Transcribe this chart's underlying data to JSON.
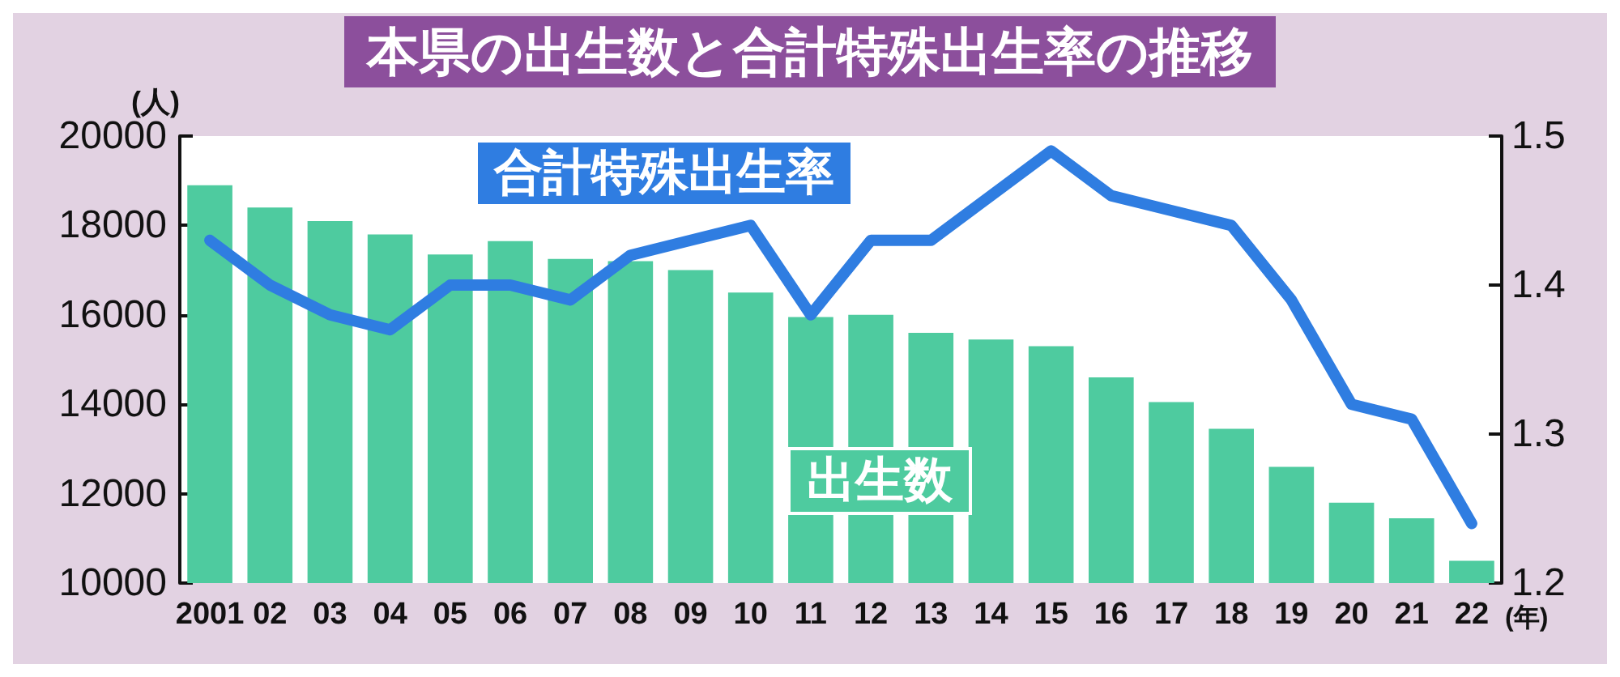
{
  "chart_data": {
    "type": "bar",
    "title": "本県の出生数と合計特殊出生率の推移",
    "ylabel": "(人)",
    "xlabel": "(年)",
    "categories": [
      "2001",
      "02",
      "03",
      "04",
      "05",
      "06",
      "07",
      "08",
      "09",
      "10",
      "11",
      "12",
      "13",
      "14",
      "15",
      "16",
      "17",
      "18",
      "19",
      "20",
      "21",
      "22"
    ],
    "series": [
      {
        "name": "出生数",
        "color": "#4ecb9f",
        "values": [
          18900,
          18400,
          18100,
          17800,
          17350,
          17650,
          17250,
          17200,
          17000,
          16500,
          15950,
          16000,
          15600,
          15450,
          15300,
          14600,
          14050,
          13450,
          12600,
          11800,
          11450,
          10500
        ]
      },
      {
        "name": "合計特殊出生率",
        "type": "line",
        "axis": "y2",
        "color": "#2f7de1",
        "values": [
          1.43,
          1.4,
          1.38,
          1.37,
          1.4,
          1.4,
          1.39,
          1.42,
          1.43,
          1.44,
          1.38,
          1.43,
          1.43,
          1.46,
          1.49,
          1.46,
          1.45,
          1.44,
          1.39,
          1.32,
          1.31,
          1.24
        ]
      }
    ],
    "ylim": [
      10000,
      20000
    ],
    "yticks": [
      10000,
      12000,
      14000,
      16000,
      18000,
      20000
    ],
    "y2lim": [
      1.2,
      1.5
    ],
    "y2ticks": [
      1.2,
      1.3,
      1.4,
      1.5
    ],
    "grid": false,
    "legend": false,
    "marker": "none",
    "line_style": "solid"
  }
}
